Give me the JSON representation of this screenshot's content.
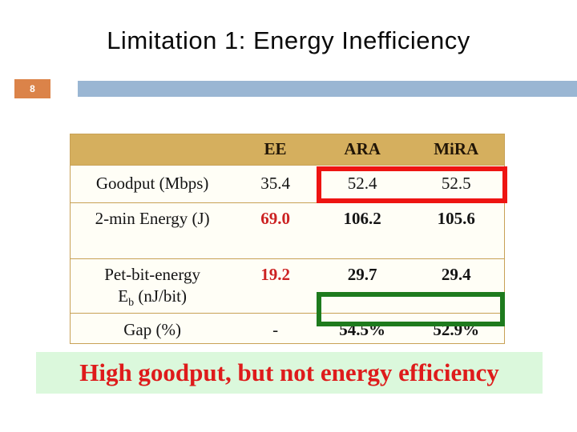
{
  "slide": {
    "title": "Limitation 1: Energy Inefficiency",
    "page_number": "8",
    "banner": "High goodput, but not energy efficiency"
  },
  "table": {
    "columns": {
      "label": "",
      "ee": "EE",
      "ara": "ARA",
      "mira": "MiRA"
    },
    "rows": [
      {
        "label": "Goodput (Mbps)",
        "ee": "35.4",
        "ara": "52.4",
        "mira": "52.5"
      },
      {
        "label": "2-min Energy (J)",
        "ee": "69.0",
        "ara": "106.2",
        "mira": "105.6"
      },
      {
        "label": "Pet-bit-energy",
        "sub_main": "E",
        "sub_sub": "b",
        "sub_rest": "(nJ/bit)",
        "ee": "19.2",
        "ara": "29.7",
        "mira": "29.4"
      },
      {
        "label": "Gap (%)",
        "ee": "-",
        "ara": "54.5%",
        "mira": "52.9%"
      }
    ]
  },
  "colors": {
    "header_fill": "#d5af5e",
    "table_border": "#c8a156",
    "page_badge": "#db8349",
    "top_bar": "#9ab6d3",
    "highlight_red": "#ee1412",
    "highlight_green": "#1e7b1e",
    "emphasis_text_red": "#cc2222",
    "banner_bg": "#dbf8dc",
    "banner_text": "#de1b1b"
  }
}
